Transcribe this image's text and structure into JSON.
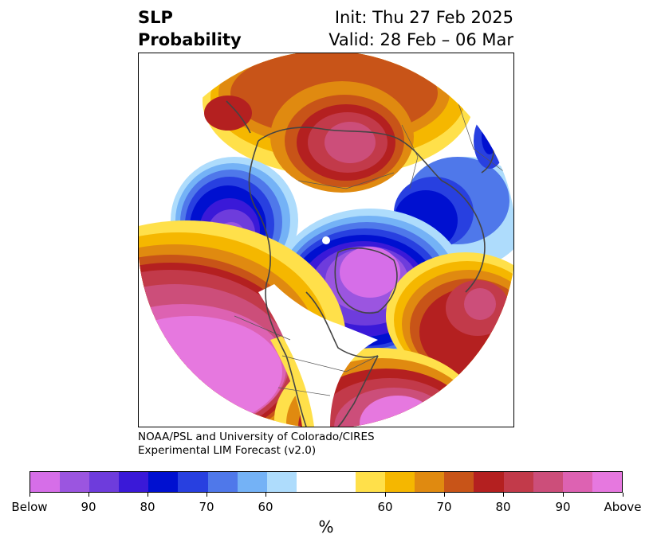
{
  "title": {
    "line1": "SLP",
    "line2": "Probability",
    "init": "Init: Thu 27 Feb 2025",
    "valid": "Valid: 28 Feb – 06 Mar"
  },
  "credit": {
    "line1": "NOAA/PSL and University of Colorado/CIRES",
    "line2": "Experimental LIM Forecast (v2.0)"
  },
  "colorbar": {
    "colors": [
      "#d66ee8",
      "#9b55e0",
      "#6e3cdc",
      "#3a19d8",
      "#0010d0",
      "#2840e0",
      "#4f78ea",
      "#74b2f6",
      "#aedcfc",
      "#ffffff",
      "#ffffff",
      "#ffe04a",
      "#f5b700",
      "#e08a10",
      "#c85418",
      "#b42020",
      "#c23a4a",
      "#cc4e7a",
      "#dd62b2",
      "#e678df"
    ],
    "ticks": [
      "Below",
      "90",
      "80",
      "70",
      "60",
      "60",
      "70",
      "80",
      "90",
      "Above"
    ],
    "unit": "%"
  },
  "map": {
    "projection": "north-polar-stereographic",
    "regions": [
      {
        "name": "north-pacific-high-probability",
        "category": "above",
        "level": "90"
      },
      {
        "name": "alaska-low-probability",
        "category": "below",
        "level": "90"
      },
      {
        "name": "greenland-canada-low-probability",
        "category": "below",
        "level": "Below"
      },
      {
        "name": "siberia-high-probability",
        "category": "above",
        "level": "90"
      },
      {
        "name": "north-atlantic-high-probability",
        "category": "above",
        "level": "80"
      },
      {
        "name": "scandinavia-low-probability",
        "category": "below",
        "level": "80"
      }
    ]
  }
}
